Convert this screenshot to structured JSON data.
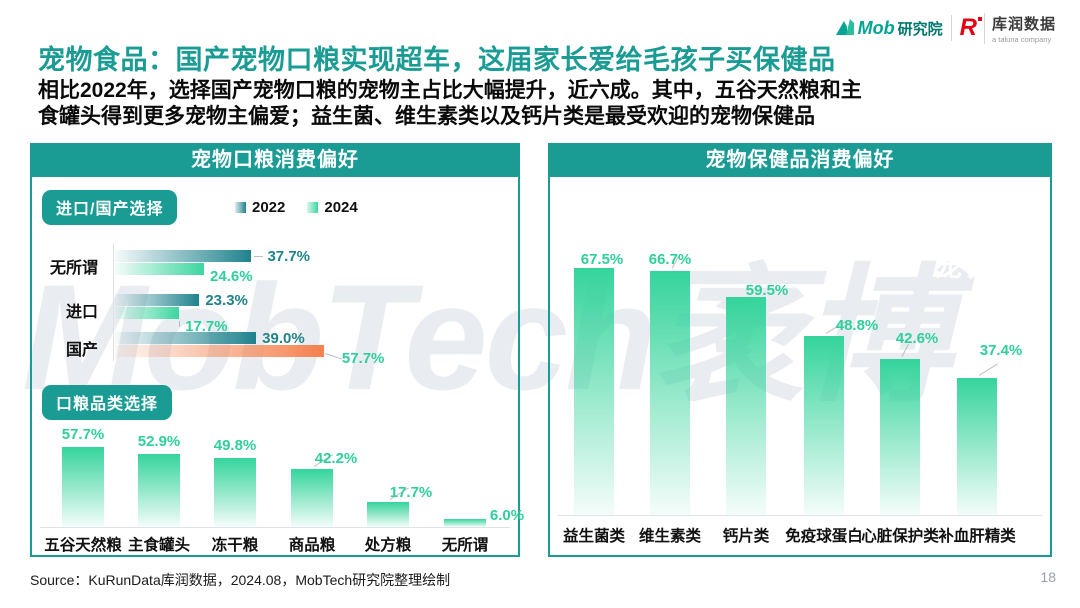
{
  "page": {
    "title": "宠物食品：国产宠物口粮实现超车，这届家长爱给毛孩子买保健品",
    "subtitle_line1": "相比2022年，选择国产宠物口粮的宠物主占比大幅提升，近六成。其中，五谷天然粮和主",
    "subtitle_line2": "食罐头得到更多宠物主偏爱；益生菌、维生素类以及钙片类是最受欢迎的宠物保健品",
    "watermark": "MobTech袤博",
    "source": "Source：KuRunData库润数据，2024.08，MobTech研究院整理绘制",
    "page_number": "18"
  },
  "logos": {
    "mob": {
      "word": "Mob",
      "suffix": "研究院"
    },
    "kurun": {
      "mark": "R",
      "name": "库润数据",
      "tagline": "a taluna company"
    }
  },
  "left_panel": {
    "header": "宠物口粮消费偏好",
    "section1_badge": "进口/国产选择",
    "section2_badge": "口粮品类选择",
    "legend": [
      {
        "label": "2022"
      },
      {
        "label": "2024"
      }
    ]
  },
  "right_panel": {
    "header": "宠物保健品消费偏好",
    "overlay_watermark": "宠物口粮"
  },
  "colors": {
    "teal": "#1a9c94",
    "teal_bar": "#1f828e",
    "green_bar": "#3bd69f",
    "green_label": "#2fcf9c",
    "orange_bar": "#f5814e",
    "watermark_gray": "#e9ecf1"
  },
  "chart_data": [
    {
      "type": "bar",
      "orientation": "horizontal",
      "title": "进口/国产选择",
      "categories": [
        "无所谓",
        "进口",
        "国产"
      ],
      "series": [
        {
          "name": "2022",
          "values": [
            37.7,
            23.3,
            39.0
          ]
        },
        {
          "name": "2024",
          "values": [
            24.6,
            17.7,
            57.7
          ]
        }
      ],
      "highlight": {
        "series": "2024",
        "category": "国产",
        "color": "#f5814e"
      },
      "unit": "%",
      "legend_position": "top"
    },
    {
      "type": "bar",
      "orientation": "vertical",
      "title": "口粮品类选择",
      "categories": [
        "五谷天然粮",
        "主食罐头",
        "冻干粮",
        "商品粮",
        "处方粮",
        "无所谓"
      ],
      "values": [
        57.7,
        52.9,
        49.8,
        42.2,
        17.7,
        6.0
      ],
      "unit": "%"
    },
    {
      "type": "bar",
      "orientation": "vertical",
      "title": "宠物保健品消费偏好",
      "categories": [
        "益生菌类",
        "维生素类",
        "钙片类",
        "免疫球蛋白",
        "心脏保护类",
        "补血肝精类"
      ],
      "values": [
        67.5,
        66.7,
        59.5,
        48.8,
        42.6,
        37.4
      ],
      "unit": "%"
    }
  ]
}
